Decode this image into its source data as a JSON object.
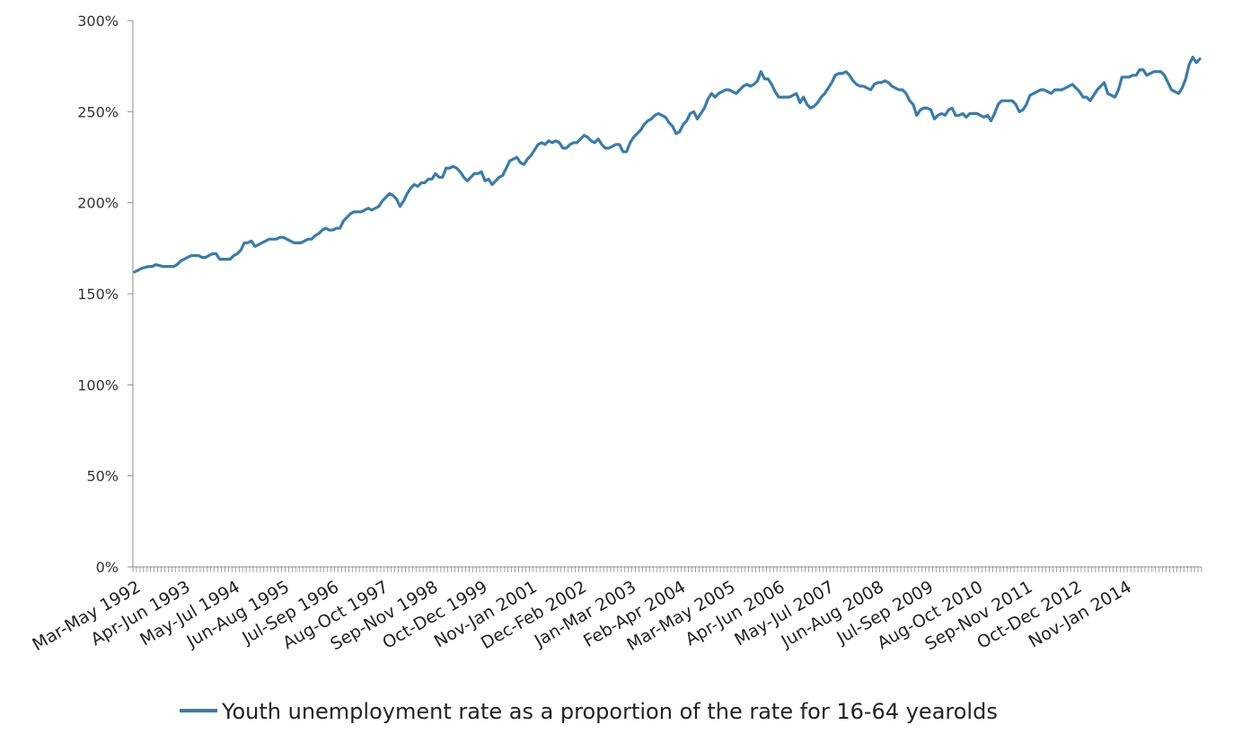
{
  "chart_data": {
    "type": "line",
    "title": "",
    "xlabel": "",
    "ylabel": "",
    "ylim": [
      0,
      300
    ],
    "y_ticks": [
      "0%",
      "50%",
      "100%",
      "150%",
      "200%",
      "250%",
      "300%"
    ],
    "y_tick_values": [
      0,
      50,
      100,
      150,
      200,
      250,
      300
    ],
    "x_tick_labels": [
      "Mar-May 1992",
      "Apr-Jun 1993",
      "May-Jul 1994",
      "Jun-Aug 1995",
      "Jul-Sep 1996",
      "Aug-Oct 1997",
      "Sep-Nov 1998",
      "Oct-Dec 1999",
      "Nov-Jan 2001",
      "Dec-Feb 2002",
      "Jan-Mar 2003",
      "Feb-Apr 2004",
      "Mar-May 2005",
      "Apr-Jun 2006",
      "May-Jul 2007",
      "Jun-Aug 2008",
      "Jul-Sep 2009",
      "Aug-Oct 2010",
      "Sep-Nov 2011",
      "Oct-Dec 2012",
      "Nov-Jan 2014"
    ],
    "grid": false,
    "legend_position": "bottom",
    "series": [
      {
        "name": "Youth unemployment rate as a proportion of the rate for 16-64 yearolds",
        "color": "#3C7BA6",
        "x_start": "Mar-May 1992",
        "x_step": "1 month",
        "values": [
          162,
          163,
          164,
          164.5,
          165,
          165,
          166,
          165.5,
          165,
          165,
          165,
          165,
          166,
          168,
          169,
          170,
          171,
          171,
          171,
          170,
          170,
          171,
          172,
          172,
          169,
          169,
          169,
          169,
          171,
          172,
          174,
          178,
          178,
          179,
          176,
          177,
          178,
          179,
          180,
          180,
          180,
          181,
          181,
          180,
          179,
          178,
          178,
          178,
          179,
          180,
          180,
          182,
          183,
          185,
          186,
          185,
          185,
          186,
          186,
          190,
          192,
          194,
          195,
          195,
          195,
          196,
          197,
          196,
          197,
          198,
          201,
          203,
          205,
          204,
          202,
          198,
          201,
          205,
          208,
          210,
          209,
          211,
          211,
          213,
          213,
          216,
          214,
          214,
          219,
          219,
          220,
          219,
          217,
          214,
          212,
          214,
          216,
          216,
          217,
          212,
          213,
          210,
          212,
          214,
          215,
          219,
          223,
          224,
          225,
          222,
          221,
          224,
          226,
          229,
          232,
          233,
          232,
          234,
          233,
          234,
          233,
          230,
          230,
          232,
          233,
          233,
          235,
          237,
          236,
          234,
          233,
          235,
          232,
          230,
          230,
          231,
          232,
          232,
          228,
          228,
          233,
          236,
          238,
          240,
          243,
          245,
          246,
          248,
          249,
          248,
          247,
          244,
          242,
          238,
          239,
          243,
          245,
          249,
          250,
          246,
          249,
          252,
          257,
          260,
          258,
          260,
          261,
          262,
          262,
          261,
          260,
          262,
          264,
          265,
          264,
          265,
          267,
          272,
          268,
          268,
          265,
          261,
          258,
          258,
          258,
          258,
          259,
          260,
          255,
          258,
          254,
          252,
          253,
          255,
          258,
          260,
          263,
          266,
          270,
          271,
          271,
          272,
          270,
          267,
          265,
          264,
          264,
          263,
          262,
          265,
          266,
          266,
          267,
          266,
          264,
          263,
          262,
          262,
          260,
          256,
          254,
          248,
          251,
          252,
          252,
          251,
          246,
          248,
          249,
          248,
          251,
          252,
          248,
          248,
          249,
          247,
          249,
          249,
          249,
          248,
          247,
          248,
          245,
          249,
          254,
          256,
          256,
          256,
          256,
          254,
          250,
          251,
          254,
          259,
          260,
          261,
          262,
          262,
          261,
          260,
          262,
          262,
          262,
          263,
          264,
          265,
          263,
          261,
          258,
          258,
          256,
          259,
          262,
          264,
          266,
          260,
          259,
          258,
          262,
          269,
          269,
          269,
          270,
          270,
          273,
          273,
          270,
          271,
          272,
          272,
          272,
          270,
          266,
          262,
          261,
          260,
          263,
          268,
          276,
          280,
          277,
          279
        ]
      }
    ]
  }
}
